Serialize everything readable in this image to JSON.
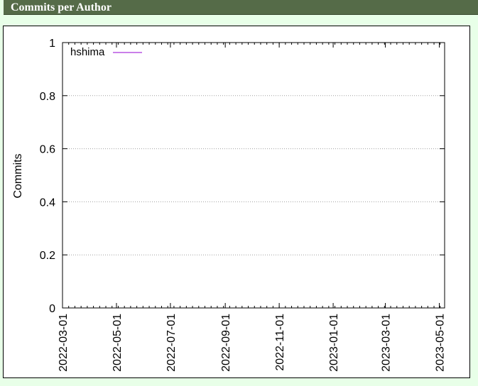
{
  "header": {
    "title": "Commits per Author"
  },
  "chart_data": {
    "type": "line",
    "title": "",
    "xlabel": "",
    "ylabel": "Commits",
    "ylim": [
      0,
      1
    ],
    "yticks": [
      0,
      0.2,
      0.4,
      0.6,
      0.8,
      1
    ],
    "ytick_labels": [
      "0",
      "0.2",
      "0.4",
      "0.6",
      "0.8",
      "1"
    ],
    "xlim": [
      "2022-03-01",
      "2023-05-07"
    ],
    "xticks": [
      "2022-03-01",
      "2022-05-01",
      "2022-07-01",
      "2022-09-01",
      "2022-11-01",
      "2023-01-01",
      "2023-03-01",
      "2023-05-01"
    ],
    "grid": true,
    "legend_position": "top-left",
    "series": [
      {
        "name": "hshima",
        "color": "#9400d3",
        "x": [],
        "y": []
      }
    ]
  }
}
